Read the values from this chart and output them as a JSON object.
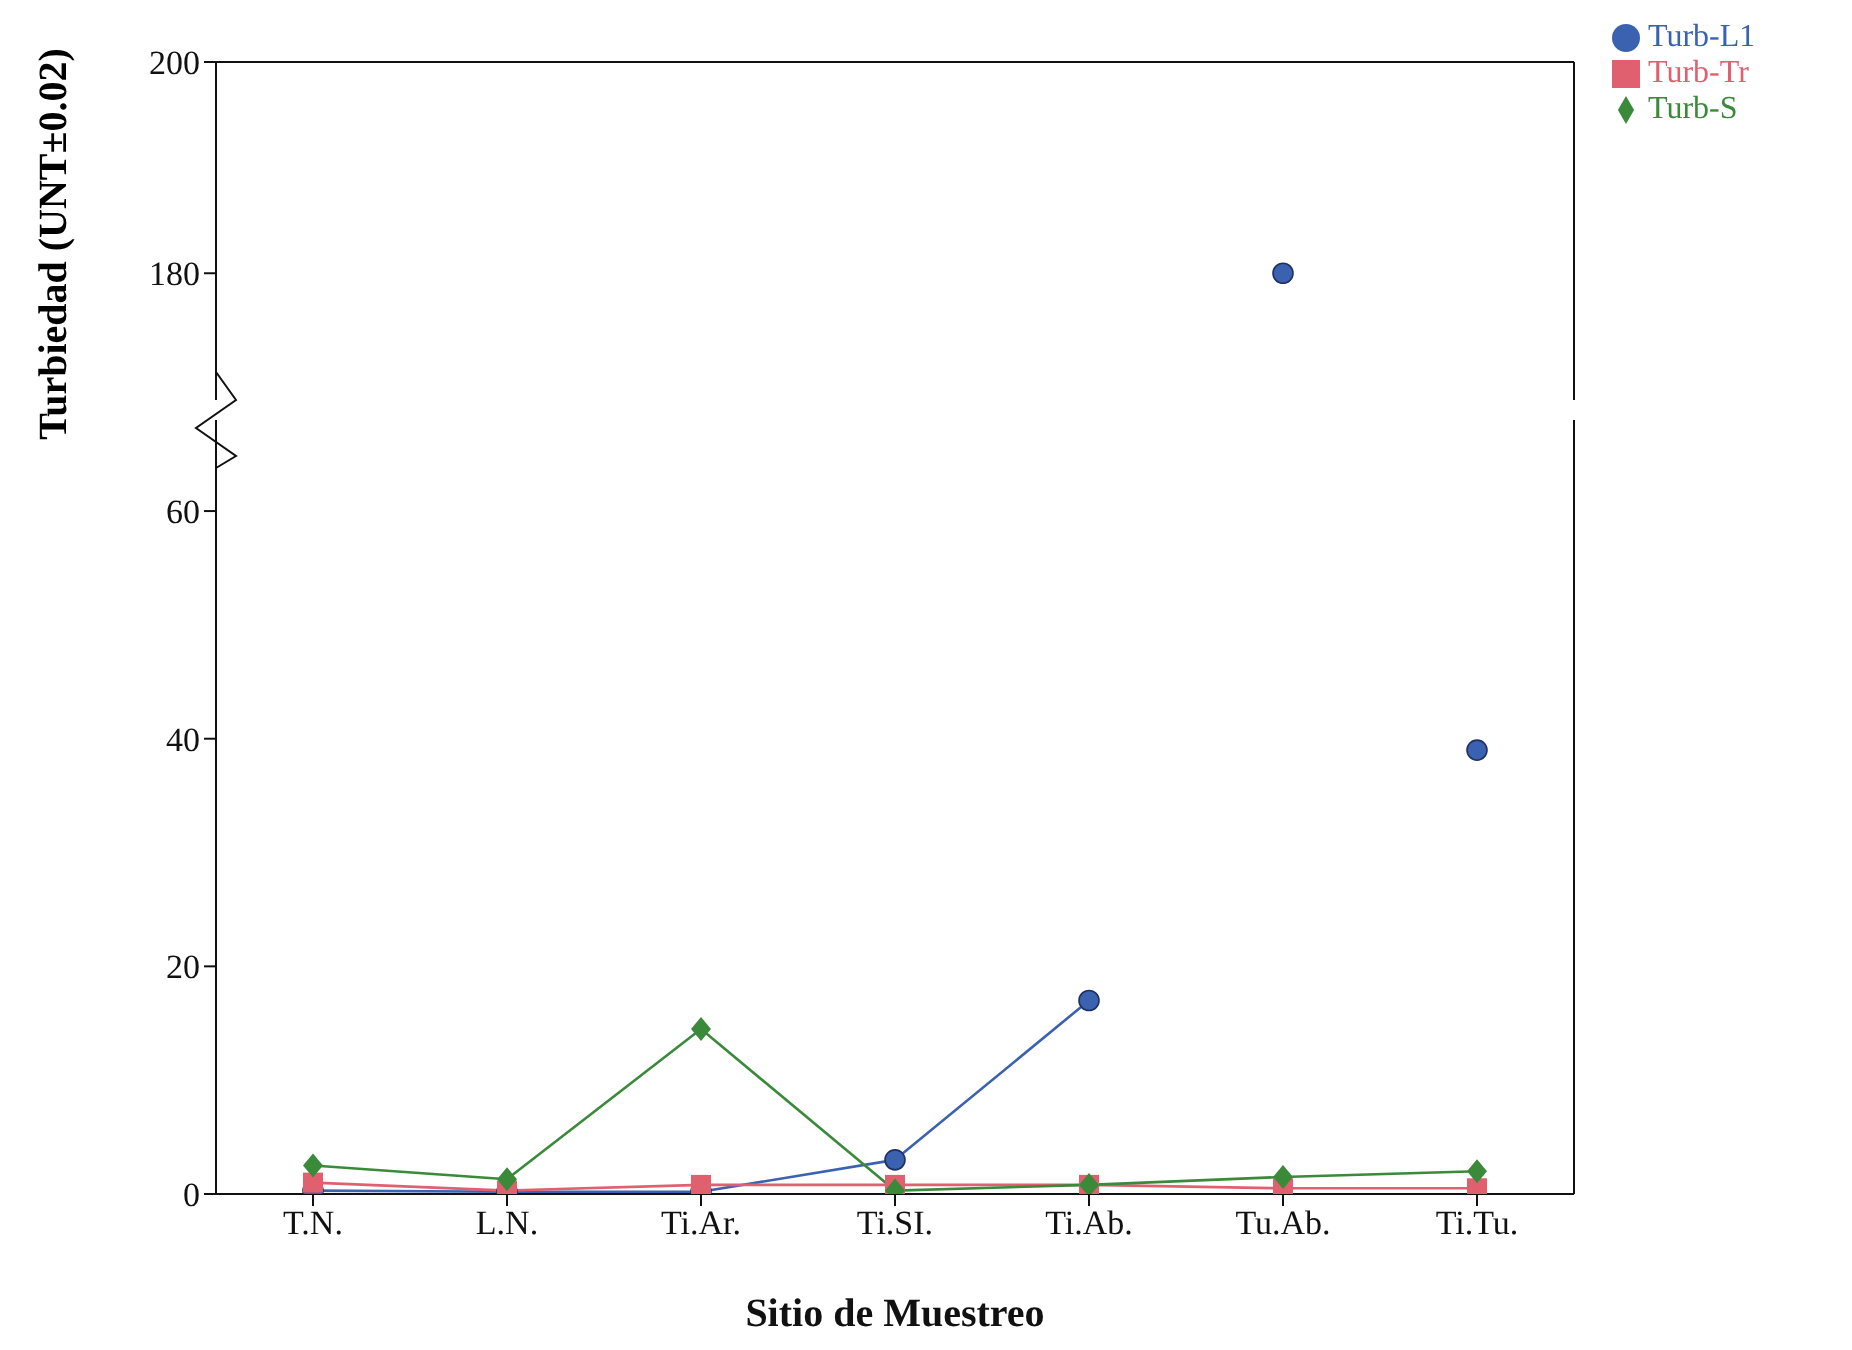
{
  "chart_data": [
    {
      "type": "line",
      "categories": [
        null,
        null,
        null,
        null,
        null,
        null,
        null
      ],
      "ylim": [
        168,
        200
      ],
      "yticks": [
        180,
        200
      ],
      "tick_labels": "y",
      "series": [
        {
          "color": "#3a62b0",
          "marker": "circle",
          "values": [
            null,
            null,
            null,
            null,
            null,
            180,
            null
          ]
        }
      ]
    },
    {
      "type": "line",
      "categories": [
        "T.N.",
        "L.N.",
        "Ti.Ar.",
        "Ti.SI.",
        "Ti.Ab.",
        "Tu.Ab.",
        "Ti.Tu."
      ],
      "xlabel": "Sitio de Muestreo",
      "ylabel": "Turbiedad (UNT±0.02)",
      "ylim": [
        0,
        68
      ],
      "yticks": [
        0,
        20,
        40,
        60
      ],
      "legend": "top right",
      "series": [
        {
          "name": "Turb-L1",
          "color": "#3a62b0",
          "marker": "circle",
          "values": [
            0.3,
            0.2,
            0.2,
            3,
            17,
            null,
            39
          ]
        },
        {
          "name": "Turb-Tr",
          "color": "#e06070",
          "marker": "square",
          "values": [
            1,
            0.3,
            0.8,
            0.8,
            0.8,
            0.5,
            0.5
          ]
        },
        {
          "name": "Turb-S",
          "color": "#3a8a3a",
          "marker": "diamond",
          "values": [
            2.5,
            1.3,
            14.5,
            0.3,
            0.8,
            1.5,
            2
          ]
        }
      ]
    }
  ]
}
